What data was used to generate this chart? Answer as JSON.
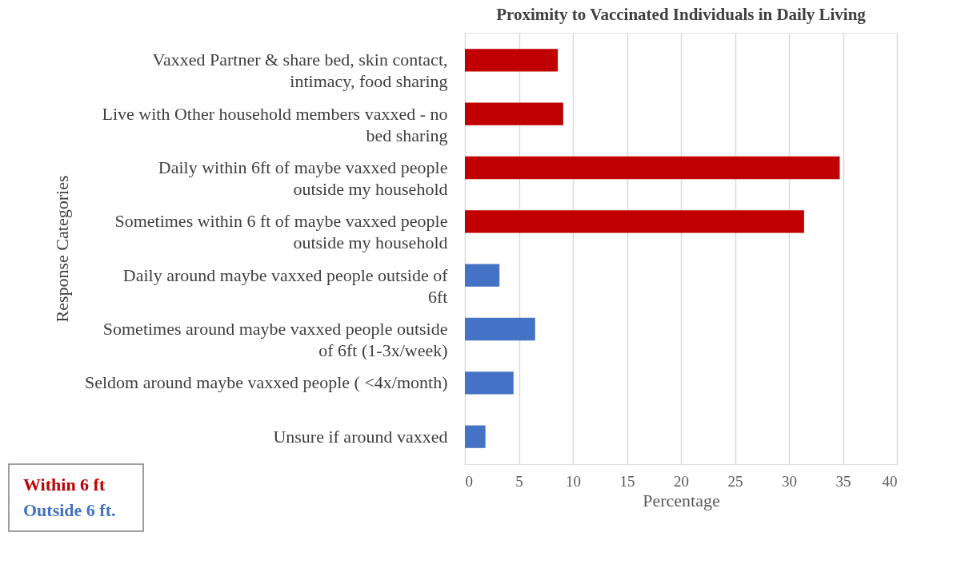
{
  "chart_data": {
    "type": "bar",
    "orientation": "horizontal",
    "title": "Proximity to Vaccinated Individuals in Daily Living",
    "xlabel": "Percentage",
    "ylabel": "Response Categories",
    "categories": [
      "Vaxxed Partner & share bed, skin contact, intimacy, food sharing",
      "Live with Other household members vaxxed - no bed sharing",
      "Daily within 6ft of maybe vaxxed people outside my household",
      "Sometimes within 6 ft of maybe vaxxed people outside my household",
      "Daily around maybe vaxxed people outside of 6ft",
      "Sometimes around maybe vaxxed people outside of 6ft (1-3x/week)",
      "Seldom around maybe vaxxed people ( <4x/month)",
      "Unsure if around vaxxed"
    ],
    "series": [
      {
        "name": "Within 6 ft",
        "color": "#c00000",
        "values": [
          8.6,
          9.1,
          34.7,
          31.4,
          null,
          null,
          null,
          null
        ]
      },
      {
        "name": "Outside 6 ft.",
        "color": "#4472c4",
        "values": [
          null,
          null,
          null,
          null,
          3.2,
          6.5,
          4.5,
          1.9
        ]
      }
    ],
    "xlim": [
      0,
      40
    ],
    "xticks": [
      0,
      5,
      10,
      15,
      20,
      25,
      30,
      35,
      40
    ],
    "grid": "x",
    "legend": "bottom left"
  }
}
